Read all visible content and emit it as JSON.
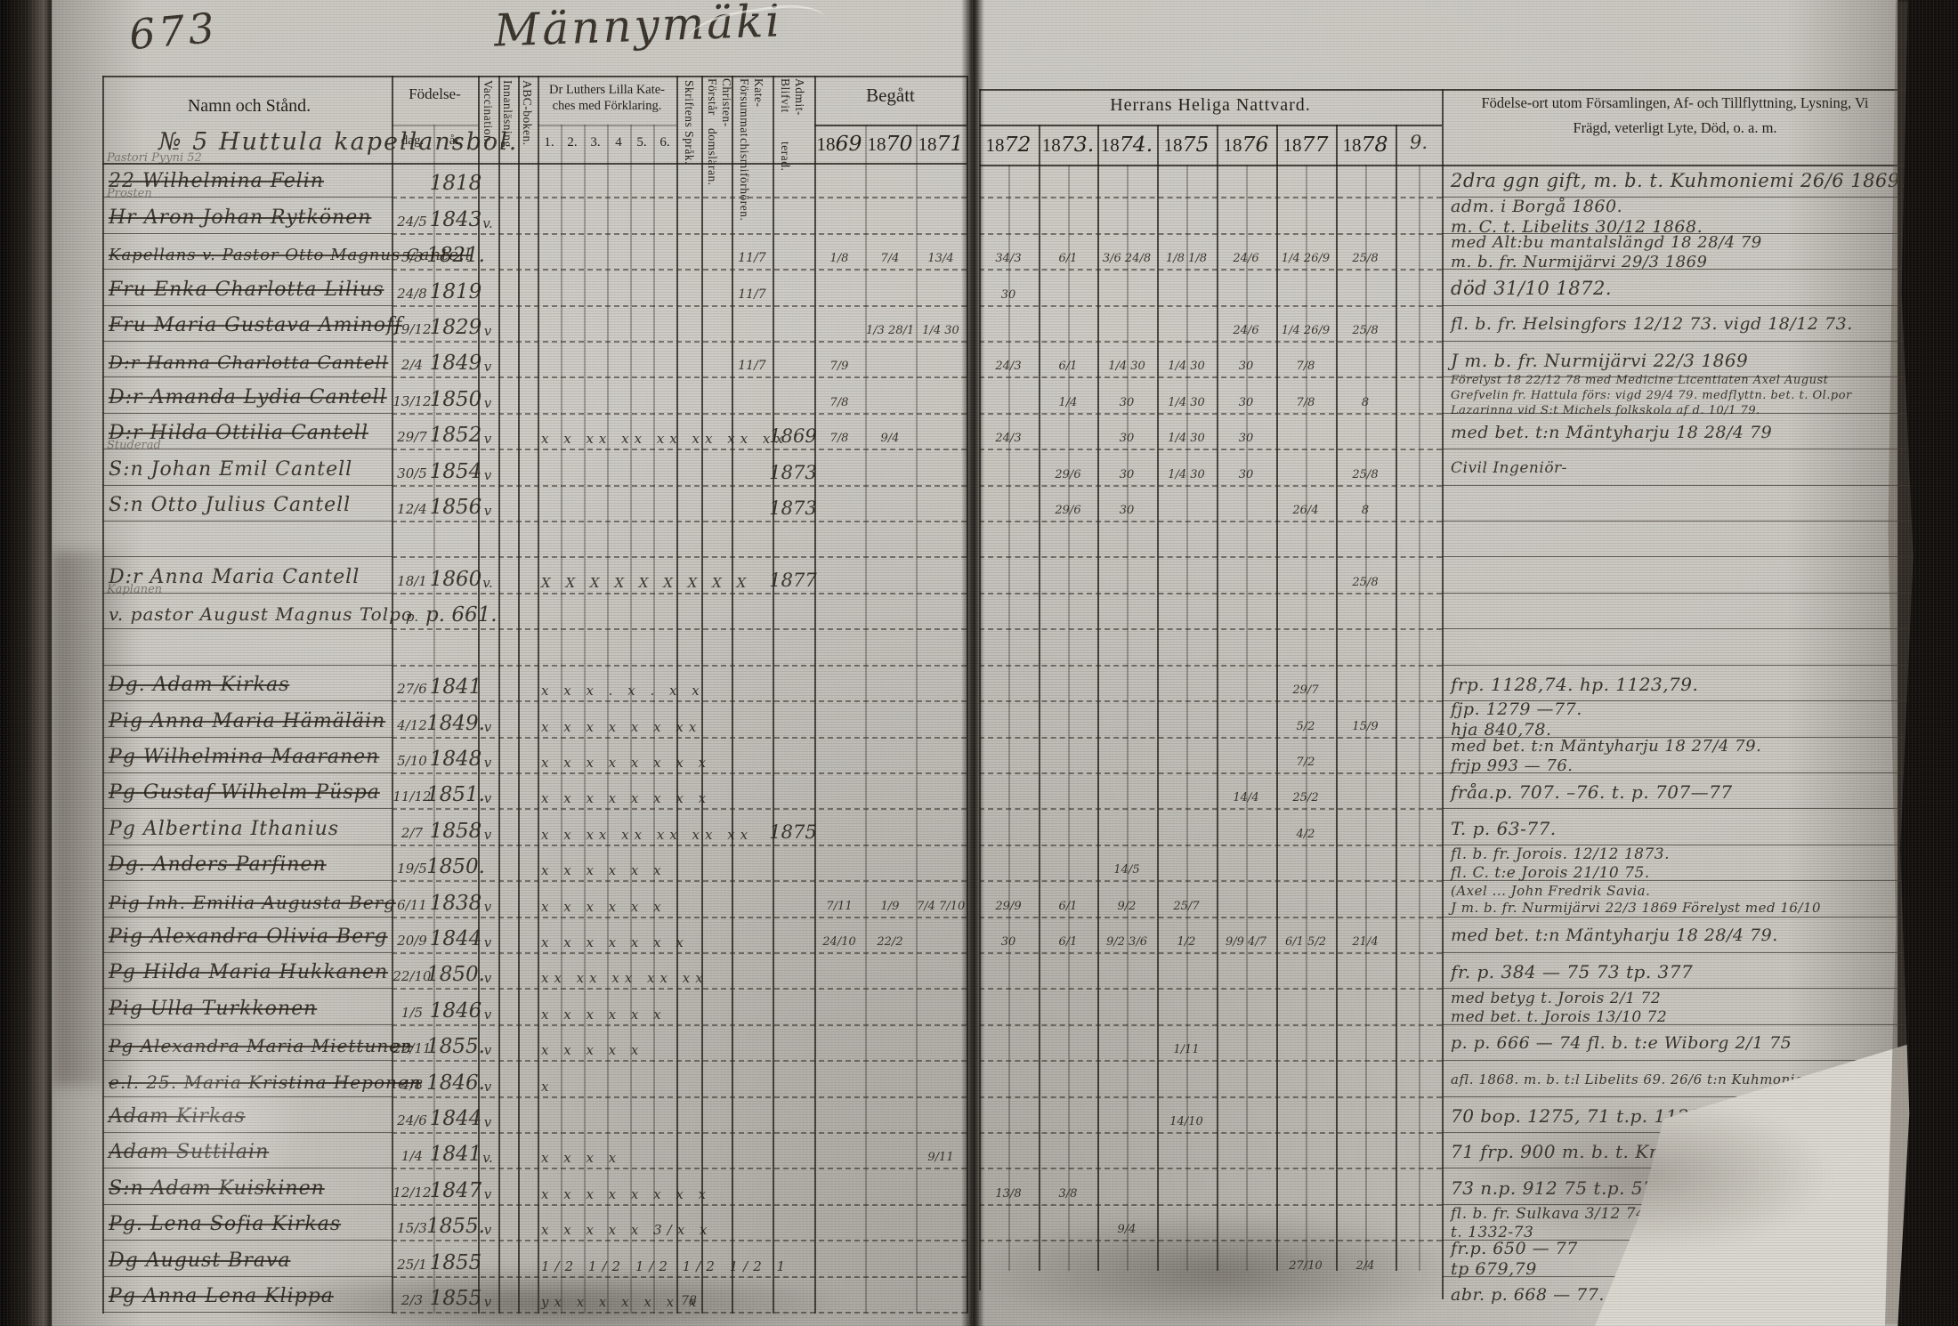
{
  "page": {
    "folio_number": "673",
    "place_title": "Männymäki",
    "section_heading": "№ 5 Huttula kapellansbol."
  },
  "left_header": {
    "name_col": "Namn och Stånd.",
    "birth": "Födelse-",
    "birth_day": "dag.",
    "birth_year": "år.",
    "vaccination": "Vaccination.",
    "reading": "Innanläsning.",
    "abc_book": "ABC-boken.",
    "catechism_line1": "Dr Luthers Lilla Kate-",
    "catechism_line2": "ches med Förklaring.",
    "catechism_nums": [
      "1.",
      "2.",
      "3.",
      "4",
      "5.",
      "6."
    ],
    "scripture": "Skriftens Språk.",
    "understands_line1": "Förstår Christen-",
    "understands_line2": "domsläran.",
    "missed_line1": "Försummat Kate-",
    "missed_line2": "chismiförhören.",
    "admitted_line1": "Blifvit Admit-",
    "admitted_line2": "terad.",
    "communion_left": "Begått",
    "communion_left_years": [
      "1869",
      "1870",
      "1871"
    ]
  },
  "right_header": {
    "communion": "Herrans Heliga Nattvard.",
    "years": [
      "1872",
      "1873.",
      "1874.",
      "1875",
      "1876",
      "1877",
      "1878",
      "9."
    ],
    "notes_line1": "Födelse-ort utom Församlingen, Af- och Tillflyttning, Lysning, Vi",
    "notes_line2": "Frägd, veterligt Lyte, Död, o. a. m."
  },
  "rows": [
    {
      "mg": "Pastori Pyyni 52",
      "nm": "22 Wilhelmina Felin",
      "st": 1,
      "y": "1818",
      "nt": [
        "2dra ggn gift, m. b. t. Kuhmoniemi 26/6 1869."
      ],
      "ns": 21
    },
    {
      "mg": "Prosten",
      "nm": "Hr Aron Johan Rytkönen",
      "st": 1,
      "d": "24/5",
      "y": "1843",
      "v": "v.",
      "nt": [
        "adm. i Borgå 1860.",
        "m. C. t. Libelits 30/12 1868."
      ],
      "ns": 19
    },
    {
      "nm": "Kapellans v. Pastor Otto Magnus Cantell",
      "st": 1,
      "d": "5/3",
      "y": "1821.",
      "fs": "11/7",
      "bg": [
        "1/8",
        "7/4",
        "13/4"
      ],
      "hh": [
        "34/3",
        "6/1",
        "3/6 24/8",
        "1/8 1/8",
        "24/6",
        "1/4 26/9",
        "25/8",
        ""
      ],
      "nt": [
        "med Alt:bu mantalslängd 18 28/4 79",
        "m. b. fr. Nurmijärvi 29/3 1869"
      ],
      "ns": 18
    },
    {
      "nm": "Fru Enka Charlotta Lilius",
      "st": 1,
      "d": "24/8",
      "y": "1819",
      "fs": "11/7",
      "hh": [
        "30",
        "",
        "",
        "",
        "",
        "",
        "",
        ""
      ],
      "nt": [
        "död 31/10 1872."
      ],
      "ns": 21
    },
    {
      "nm": "Fru Maria Gustava Aminoff",
      "st": 1,
      "d": "19/12",
      "y": "1829",
      "v": "v",
      "bg": [
        "",
        "1/3 28/1",
        "1/4 30"
      ],
      "hh": [
        "",
        "",
        "",
        "",
        "24/6",
        "1/4 26/9",
        "25/8",
        ""
      ],
      "nt": [
        "fl. b. fr. Helsingfors 12/12 73.    vigd 18/12 73."
      ],
      "ns": 19
    },
    {
      "nm": "D:r Hanna Charlotta Cantell",
      "st": 1,
      "d": "2/4",
      "y": "1849",
      "v": "v",
      "fs": "11/7",
      "bg": [
        "7/9",
        "",
        ""
      ],
      "hh": [
        "24/3",
        "6/1",
        "1/4 30",
        "1/4 30",
        "30",
        "7/8",
        "",
        ""
      ],
      "nt": [
        "J m. b. fr. Nurmijärvi 22/3 1869"
      ],
      "ns": 20
    },
    {
      "nm": "D:r Amanda Lydia Cantell",
      "st": 1,
      "d": "13/12",
      "y": "1850",
      "v": "v",
      "bg": [
        "7/8",
        "",
        ""
      ],
      "hh": [
        "",
        "1/4",
        "30",
        "1/4 30",
        "30",
        "7/8",
        "8",
        ""
      ],
      "nt": [
        "Förelyst 18 22/12 78 med Medicine Licentiaten Axel August",
        "Grefvelin fr. Hattula förs: vigd 29/4 79. medflyttn. bet. t. Ol.por",
        "Lazarinna vid S:t Michels folkskola af d. 10/1 79."
      ],
      "ns": 13
    },
    {
      "nm": "D:r Hilda Ottilia Cantell",
      "st": 1,
      "d": "29/7",
      "y": "1852",
      "v": "v",
      "ka": "x x xx xx xx xx xx xx",
      "ad": "1869",
      "bg": [
        "7/8",
        "9/4",
        ""
      ],
      "hh": [
        "24/3",
        "",
        "30",
        "1/4 30",
        "30",
        "",
        "",
        ""
      ],
      "nt": [
        "med bet. t:n Mäntyharju 18 28/4 79"
      ],
      "ns": 19
    },
    {
      "mg": "Studerad",
      "nm": "S:n Johan Emil Cantell",
      "d": "30/5",
      "y": "1854",
      "v": "v",
      "ad": "1873",
      "hh": [
        "",
        "29/6",
        "30",
        "1/4 30",
        "30",
        "",
        "25/8",
        ""
      ],
      "nt": [
        "Civil Ingeniör-"
      ],
      "ns": 17
    },
    {
      "nm": "S:n Otto Julius Cantell",
      "d": "12/4",
      "y": "1856",
      "v": "v",
      "ad": "1873",
      "hh": [
        "",
        "29/6",
        "30",
        "",
        "",
        "26/4",
        "8",
        ""
      ],
      "nt": []
    },
    {},
    {
      "nm": "D:r Anna Maria Cantell",
      "d": "18/1",
      "y": "1860",
      "v": "v.",
      "ka": "X X X X X X X X   X",
      "ad": "1877",
      "hh": [
        "",
        "",
        "",
        "",
        "",
        "",
        "25/8",
        ""
      ],
      "nt": []
    },
    {
      "mg": "Kaplanen",
      "nm": "v. pastor August Magnus Tolpo",
      "d": "p.",
      "y": "p. 661.",
      "nt": []
    },
    {},
    {
      "nm": "Dg. Adam Kirkas",
      "st": 1,
      "d": "27/6",
      "y": "1841",
      "ka": "x x x . x . x x",
      "hh": [
        "",
        "",
        "",
        "",
        "",
        "29/7",
        "",
        ""
      ],
      "nt": [
        "frp. 1128,74.      hp. 1123,79."
      ],
      "ns": 20
    },
    {
      "nm": "Pig Anna Maria Hämäläin",
      "st": 1,
      "d": "4/12",
      "y": "1849.",
      "v": "v",
      "ka": "x x x x x x xx",
      "hh": [
        "",
        "",
        "",
        "",
        "",
        "5/2",
        "15/9",
        ""
      ],
      "nt": [
        "fjp. 1279 —77.",
        "hja 840,78."
      ],
      "ns": 19
    },
    {
      "nm": "Pg Wilhelmina Maaranen",
      "st": 1,
      "d": "5/10",
      "y": "1848",
      "v": "v",
      "ka": "x x x x x x x x",
      "hh": [
        "",
        "",
        "",
        "",
        "",
        "7/2",
        "",
        ""
      ],
      "nt": [
        "med bet. t:n Mäntyharju 18 27/4 79.",
        "frjp 993 — 76."
      ],
      "ns": 18
    },
    {
      "nm": "Pg Gustaf Wilhelm Püspa",
      "st": 1,
      "d": "11/12",
      "y": "1851.",
      "v": "v",
      "ka": "x x x x x x x x",
      "hh": [
        "",
        "",
        "",
        "",
        "14/4",
        "25/2",
        "",
        ""
      ],
      "nt": [
        "fråa.p. 707. –76.      t. p. 707—77"
      ],
      "ns": 20
    },
    {
      "nm": "Pg Albertina Ithanius",
      "d": "2/7",
      "y": "1858",
      "v": "v",
      "ka": "x x xx xx xx xx xx",
      "ad": "1875",
      "hh": [
        "",
        "",
        "",
        "",
        "",
        "4/2",
        "",
        ""
      ],
      "nt": [
        "T. p. 63-77."
      ],
      "ns": 20
    },
    {
      "nm": "Dg. Anders Parfinen",
      "st": 1,
      "d": "19/5",
      "y": "1850.",
      "ka": "x   x   x   x   x   x",
      "hh": [
        "",
        "",
        "14/5",
        "",
        "",
        "",
        "",
        ""
      ],
      "nt": [
        "fl. b. fr. Jorois. 12/12 1873.",
        "fl. C. t:e Jorois 21/10 75."
      ],
      "ns": 17
    },
    {
      "nm": "Pig Inh. Emilia Augusta Berg",
      "st": 1,
      "d": "6/11",
      "y": "1838",
      "v": "v",
      "ka": "x x x x x x",
      "bg": [
        "7/11",
        "1/9",
        "7/4 7/10"
      ],
      "hh": [
        "29/9",
        "6/1",
        "9/2",
        "25/7",
        "",
        "",
        "",
        ""
      ],
      "nt": [
        "(Axel ... John Fredrik Savia.",
        "J m. b. fr. Nurmijärvi 22/3 1869 Förelyst med 16/10"
      ],
      "ns": 15
    },
    {
      "nm": "Pig Alexandra Olivia Berg",
      "st": 1,
      "d": "20/9",
      "y": "1844",
      "v": "v",
      "ka": "x x x x x x x",
      "bg": [
        "24/10",
        "22/2",
        ""
      ],
      "hh": [
        "30",
        "6/1",
        "9/2 3/6",
        "1/2",
        "9/9 4/7",
        "6/1 5/2",
        "21/4",
        ""
      ],
      "nt": [
        "med bet. t:n Mäntyharju 18 28/4 79."
      ],
      "ns": 19
    },
    {
      "nm": "Pg Hilda Maria Hukkanen",
      "st": 1,
      "d": "22/10",
      "y": "1850.",
      "v": "v",
      "ka": "xx xx xx xx xx",
      "hh": [
        "",
        "",
        "",
        "",
        "",
        "",
        "",
        ""
      ],
      "nt": [
        "fr. p. 384 — 75    73 tp. 377"
      ],
      "ns": 20
    },
    {
      "nm": "Pig Ulla Turkkonen",
      "st": 1,
      "d": "1/5",
      "y": "1846",
      "v": "v",
      "ka": "x x x x x x",
      "hh": [
        "",
        "",
        "",
        "",
        "",
        "",
        "",
        ""
      ],
      "nt": [
        "med betyg t. Jorois 2/1 72",
        "med bet. t. Jorois 13/10 72"
      ],
      "ns": 17
    },
    {
      "nm": "Pg Alexandra Maria Miettunen",
      "st": 1,
      "d": "22/11",
      "y": "1855.",
      "v": "v",
      "ka": "x x x x x",
      "hh": [
        "",
        "",
        "",
        "1/11",
        "",
        "",
        "",
        ""
      ],
      "nt": [
        "p. p. 666 — 74    fl. b. t:e Wiborg 2/1 75"
      ],
      "ns": 19
    },
    {
      "nm": "e.l. 25. Maria Kristina Heponen",
      "st": 1,
      "d": "4/8",
      "y": "1846.",
      "v": "v",
      "ka": "x",
      "hh": [
        "",
        "",
        "",
        "",
        "",
        "",
        "",
        ""
      ],
      "nt": [
        "afl. 1868. m. b. t:l Libelits 69. 26/6 t:n Kuhmoniemi."
      ],
      "ns": 15
    },
    {
      "nm": "Adam Kirkas",
      "st": 1,
      "d": "24/6",
      "y": "1844",
      "v": "v",
      "hh": [
        "",
        "",
        "",
        "14/10",
        "",
        "",
        "",
        ""
      ],
      "nt": [
        "70 bop. 1275, 71 t.p. 1129. t. p. — 7"
      ],
      "ns": 20
    },
    {
      "nm": "Adam Suttilain",
      "st": 1,
      "d": "1/4",
      "y": "1841",
      "v": "v.",
      "ka": "x   x x x",
      "bg": [
        "",
        "",
        "9/11"
      ],
      "hh": [
        "",
        "",
        "",
        "",
        "",
        "",
        "",
        ""
      ],
      "nt": [
        "71 frp. 900 m. b. t. Kristina 7/10 1872"
      ],
      "ns": 20
    },
    {
      "nm": "S:n Adam Kuiskinen",
      "st": 1,
      "d": "12/12",
      "y": "1847",
      "v": "v",
      "ka": "x x x x x x x x",
      "hh": [
        "13/8",
        "3/8",
        "",
        "",
        "",
        "",
        "",
        ""
      ],
      "nt": [
        "73 n.p. 912    75 t.p. 571"
      ],
      "ns": 20
    },
    {
      "nm": "Pg. Lena Sofia Kirkas",
      "st": 1,
      "d": "15/3",
      "y": "1855.",
      "v": "v",
      "ka": "x x x x x 3/x x",
      "hh": [
        "",
        "",
        "9/4",
        "",
        "",
        "",
        "",
        ""
      ],
      "nt": [
        "fl. b. fr. Sulkava 3/12 74.",
        "t. 1332-73"
      ],
      "ns": 17
    },
    {
      "nm": "Dg August Brava",
      "st": 1,
      "d": "25/1",
      "y": "1855",
      "ka": "1/2 1/2 1/2 1/2 1/2 1",
      "hh": [
        "",
        "",
        "",
        "",
        "",
        "27/10",
        "2/4",
        ""
      ],
      "nt": [
        "fr.p. 650 — 77",
        "tp 679,79"
      ],
      "ns": 19
    },
    {
      "nm": "Pg Anna Lena Klippa",
      "st": 1,
      "d": "2/3",
      "y": "1855",
      "v": "v",
      "ka": "yx x x x x x x",
      "sk": "78",
      "hh": [
        "",
        "",
        "",
        "",
        "",
        "",
        "",
        ""
      ],
      "nt": [
        "abr. p. 668 — 77.     t:n 662,70"
      ],
      "ns": 19
    }
  ]
}
